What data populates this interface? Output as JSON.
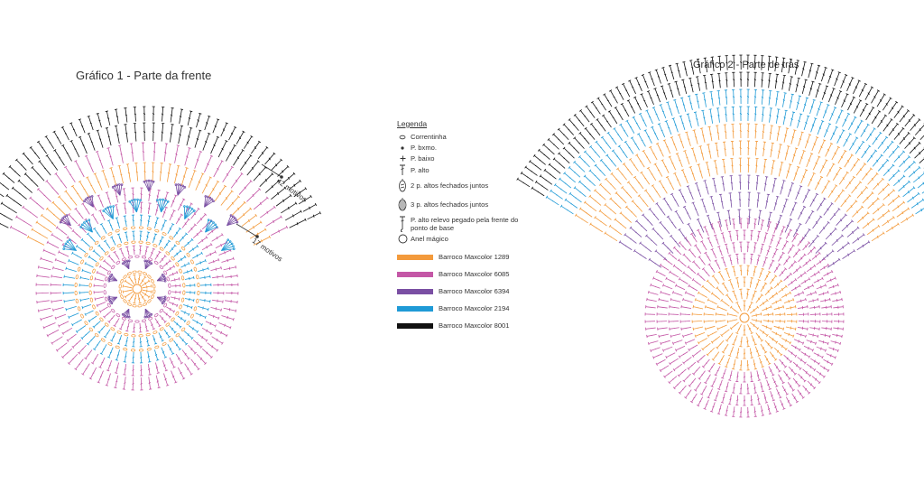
{
  "chart1": {
    "title": "Gráfico 1 - Parte da frente"
  },
  "chart2": {
    "title": "Gráfico 2 - Parte de trás"
  },
  "annotations": {
    "motifs_42": "42 motivos",
    "motifs_17": "17 motivos"
  },
  "legend": {
    "title": "Legenda",
    "symbols": [
      {
        "icon": "chain-oval-icon",
        "label": "Correntinha"
      },
      {
        "icon": "slip-stitch-dot-icon",
        "label": "P. bxmo."
      },
      {
        "icon": "single-crochet-plus-icon",
        "label": "P. baixo"
      },
      {
        "icon": "double-crochet-icon",
        "label": "P. alto"
      },
      {
        "icon": "dc2tog-icon",
        "label": "2 p. altos fechados juntos"
      },
      {
        "icon": "dc3tog-icon",
        "label": "3 p. altos fechados juntos"
      },
      {
        "icon": "front-post-dc-icon",
        "label": "P. alto relevo pegado pela frente do ponto de base"
      },
      {
        "icon": "magic-ring-icon",
        "label": "Anel mágico"
      }
    ],
    "colors": [
      {
        "hex": "#f39a3b",
        "label": "Barroco Maxcolor 1289"
      },
      {
        "hex": "#c457a6",
        "label": "Barroco Maxcolor 6085"
      },
      {
        "hex": "#7a4fa3",
        "label": "Barroco Maxcolor 6394"
      },
      {
        "hex": "#1f9ad6",
        "label": "Barroco Maxcolor 2194"
      },
      {
        "hex": "#111111",
        "label": "Barroco Maxcolor 8001"
      }
    ]
  }
}
